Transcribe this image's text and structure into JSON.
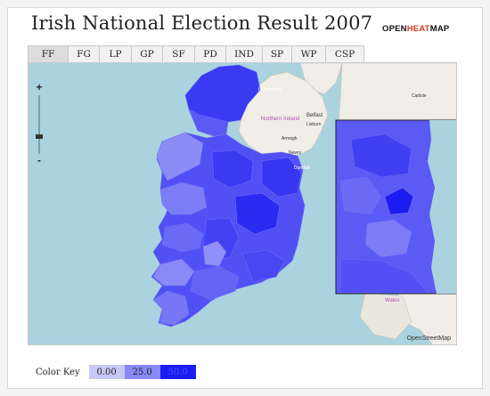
{
  "page": {
    "title": "Irish National Election Result 2007",
    "brand_pre": "OPEN",
    "brand_hl": "HEAT",
    "brand_post": "MAP"
  },
  "tabs": [
    {
      "label": "FF",
      "active": true
    },
    {
      "label": "FG"
    },
    {
      "label": "LP"
    },
    {
      "label": "GP"
    },
    {
      "label": "SF"
    },
    {
      "label": "PD"
    },
    {
      "label": "IND"
    },
    {
      "label": "SP"
    },
    {
      "label": "WP"
    },
    {
      "label": "CSP"
    }
  ],
  "map": {
    "zoom_in": "+",
    "zoom_out": "-",
    "labels": {
      "northern_ireland": "Northern Ireland",
      "belfast": "Belfast",
      "armagh": "Armagh",
      "newry": "Newry",
      "lisburn": "Lisburn",
      "carlisle": "Carlisle",
      "letterkenny": "Letterkenny",
      "dundalk": "Dundalk",
      "wales": "Wales"
    },
    "copyright": "OpenStreetMap"
  },
  "legend": {
    "label": "Color Key",
    "items": [
      {
        "value": "0.00",
        "color": "#c8c8f6",
        "text_color": "#222222"
      },
      {
        "value": "25.0",
        "color": "#8888f6",
        "text_color": "#222222"
      },
      {
        "value": "50.0",
        "color": "#1c1cf0",
        "text_color": "#4a4af8"
      }
    ]
  },
  "colors": {
    "water": "#aad3df",
    "land": "#f1eee8",
    "max": "#1c1cf0",
    "mid": "#5050f4",
    "low": "#9a9af8"
  }
}
